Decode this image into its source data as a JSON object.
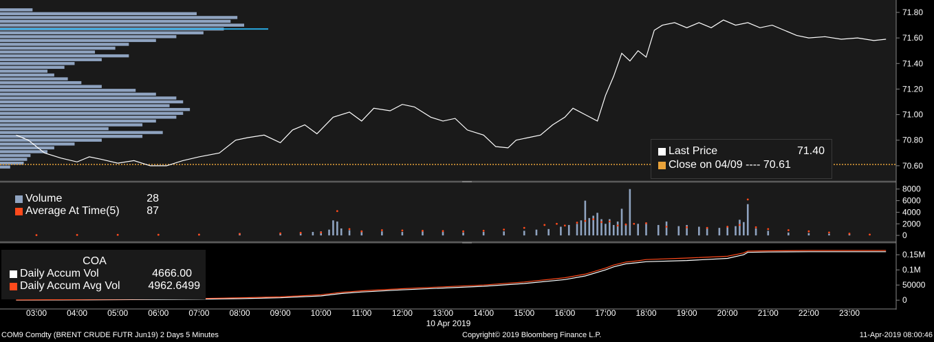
{
  "colors": {
    "background": "#000000",
    "panel": "#1a1a1a",
    "price_line": "#ffffff",
    "profile_bar": "#8fa3c0",
    "profile_poc": "#29a8e0",
    "close_line": "#e8a23a",
    "volume_bar": "#8fa3c0",
    "avg_dot": "#ff4a1c",
    "accum_vol": "#ffffff",
    "accum_avg": "#ff4a1c",
    "separator": "#5a5a5a"
  },
  "legend_price": {
    "last_price_label": "Last Price",
    "last_price_value": "71.40",
    "close_label": "Close on 04/09 ---- 70.61"
  },
  "legend_volume": {
    "volume_label": "Volume",
    "volume_value": "28",
    "avg_label": "Average At Time(5)",
    "avg_value": "87"
  },
  "legend_accum": {
    "title": "COA",
    "daily_accum_label": "Daily Accum Vol",
    "daily_accum_value": "4666.00",
    "daily_avg_label": "Daily Accum Avg Vol",
    "daily_avg_value": "4962.6499"
  },
  "footer": {
    "security": "COM9 Comdty  (BRENT CRUDE FUTR  Jun19) 2 Days 5 Minutes",
    "copyright": "Copyright© 2019 Bloomberg Finance L.P.",
    "timestamp": "11-Apr-2019 08:00:46"
  },
  "date_label": "10 Apr 2019",
  "chart_data": {
    "type": "line",
    "x_ticks": [
      "03:00",
      "04:00",
      "05:00",
      "06:00",
      "07:00",
      "08:00",
      "09:00",
      "10:00",
      "11:00",
      "12:00",
      "13:00",
      "14:00",
      "15:00",
      "16:00",
      "17:00",
      "18:00",
      "19:00",
      "20:00",
      "21:00",
      "22:00",
      "23:00"
    ],
    "price": {
      "ylim": [
        70.54,
        71.87
      ],
      "y_ticks": [
        "71.80",
        "71.60",
        "71.40",
        "71.20",
        "71.00",
        "70.80",
        "70.60"
      ],
      "close_value": 70.61,
      "series": [
        {
          "name": "Last Price",
          "x": [
            2.5,
            2.8,
            3.2,
            3.6,
            4.0,
            4.3,
            4.6,
            5.0,
            5.4,
            5.8,
            6.2,
            6.6,
            7.0,
            7.5,
            7.9,
            8.2,
            8.6,
            9.0,
            9.3,
            9.6,
            9.9,
            10.3,
            10.7,
            11.0,
            11.3,
            11.7,
            12.0,
            12.3,
            12.7,
            13.0,
            13.3,
            13.6,
            14.0,
            14.3,
            14.6,
            14.8,
            15.1,
            15.4,
            15.7,
            16.0,
            16.2,
            16.5,
            16.8,
            17.0,
            17.2,
            17.4,
            17.6,
            17.8,
            18.0,
            18.2,
            18.4,
            18.7,
            19.0,
            19.3,
            19.6,
            19.9,
            20.2,
            20.5,
            20.8,
            21.1,
            21.4,
            21.7,
            22.0,
            22.4,
            22.8,
            23.2,
            23.6,
            23.9
          ],
          "y": [
            70.84,
            70.8,
            70.7,
            70.66,
            70.63,
            70.67,
            70.65,
            70.62,
            70.64,
            70.6,
            70.6,
            70.64,
            70.67,
            70.7,
            70.8,
            70.82,
            70.84,
            70.78,
            70.88,
            70.92,
            70.85,
            70.98,
            71.02,
            70.95,
            71.05,
            71.03,
            71.08,
            71.06,
            70.98,
            70.95,
            70.97,
            70.88,
            70.84,
            70.75,
            70.74,
            70.8,
            70.82,
            70.84,
            70.92,
            70.98,
            71.05,
            71.0,
            70.95,
            71.15,
            71.3,
            71.48,
            71.42,
            71.5,
            71.45,
            71.66,
            71.7,
            71.72,
            71.68,
            71.72,
            71.68,
            71.74,
            71.7,
            71.72,
            71.68,
            71.7,
            71.66,
            71.62,
            71.6,
            71.61,
            71.59,
            71.6,
            71.58,
            71.59
          ]
        }
      ]
    },
    "volume_profile": {
      "price_levels": [
        71.82,
        71.79,
        71.76,
        71.73,
        71.7,
        71.67,
        71.64,
        71.61,
        71.58,
        71.55,
        71.52,
        71.49,
        71.46,
        71.43,
        71.4,
        71.37,
        71.34,
        71.31,
        71.28,
        71.25,
        71.22,
        71.19,
        71.16,
        71.13,
        71.1,
        71.07,
        71.04,
        71.01,
        70.98,
        70.95,
        70.92,
        70.89,
        70.86,
        70.83,
        70.8,
        70.77,
        70.74,
        70.71,
        70.68,
        70.65,
        70.62,
        70.59
      ],
      "values": [
        48,
        290,
        350,
        340,
        360,
        330,
        300,
        260,
        230,
        190,
        170,
        140,
        190,
        150,
        110,
        95,
        70,
        80,
        100,
        120,
        150,
        200,
        230,
        260,
        270,
        250,
        280,
        270,
        260,
        230,
        210,
        160,
        240,
        210,
        150,
        110,
        80,
        70,
        45,
        40,
        35,
        15
      ],
      "poc": 71.67
    },
    "volume": {
      "ylim": [
        -700,
        8800
      ],
      "y_ticks": [
        "8000",
        "6000",
        "4000",
        "2000",
        "0"
      ],
      "series": [
        {
          "name": "Volume",
          "x": [
            3.0,
            4.0,
            5.0,
            6.0,
            7.0,
            8.0,
            9.0,
            9.5,
            9.8,
            10.0,
            10.2,
            10.3,
            10.4,
            10.5,
            10.7,
            11.0,
            11.5,
            12.0,
            12.5,
            13.0,
            13.5,
            14.0,
            14.5,
            15.0,
            15.3,
            15.6,
            15.9,
            16.1,
            16.3,
            16.4,
            16.5,
            16.6,
            16.7,
            16.8,
            16.9,
            17.0,
            17.1,
            17.2,
            17.3,
            17.4,
            17.5,
            17.6,
            17.8,
            18.0,
            18.3,
            18.5,
            18.8,
            19.0,
            19.3,
            19.5,
            19.8,
            20.0,
            20.2,
            20.3,
            20.4,
            20.5,
            20.7,
            21.0,
            21.5,
            22.0,
            22.5,
            23.0
          ],
          "values": [
            60,
            90,
            120,
            150,
            200,
            400,
            300,
            500,
            600,
            700,
            1000,
            2600,
            2400,
            1200,
            900,
            800,
            700,
            600,
            700,
            600,
            500,
            600,
            700,
            800,
            1000,
            1100,
            1500,
            1800,
            2000,
            2600,
            6000,
            3000,
            3400,
            3900,
            2800,
            2000,
            2800,
            1800,
            2400,
            4600,
            1900,
            8000,
            2000,
            2200,
            1800,
            2400,
            1600,
            1800,
            1500,
            1400,
            1300,
            1500,
            1600,
            2700,
            2300,
            5400,
            1200,
            800,
            500,
            400,
            300,
            250
          ]
        },
        {
          "name": "Average At Time(5)",
          "x": [
            3.0,
            4.0,
            5.0,
            6.0,
            7.0,
            8.0,
            9.0,
            9.5,
            10.0,
            10.4,
            10.7,
            11.0,
            11.5,
            12.0,
            12.5,
            13.0,
            13.5,
            14.0,
            14.5,
            15.0,
            15.5,
            15.8,
            16.0,
            16.3,
            16.5,
            16.7,
            16.9,
            17.1,
            17.3,
            17.5,
            17.7,
            18.0,
            18.5,
            19.0,
            19.5,
            20.0,
            20.3,
            20.5,
            20.7,
            21.0,
            21.5,
            22.0,
            22.5,
            23.0,
            23.5
          ],
          "values": [
            50,
            80,
            100,
            120,
            140,
            250,
            350,
            450,
            500,
            4200,
            1100,
            700,
            900,
            850,
            800,
            750,
            700,
            800,
            1000,
            1300,
            1800,
            2000,
            1700,
            2200,
            2500,
            2800,
            2300,
            2400,
            1700,
            1900,
            2000,
            2100,
            1500,
            1400,
            1300,
            1500,
            1800,
            6200,
            1400,
            1100,
            900,
            700,
            500,
            300,
            150
          ]
        }
      ]
    },
    "accumulation": {
      "ylim": [
        -20000,
        180000
      ],
      "y_ticks": [
        "0.15M",
        "0.1M",
        "50000",
        "0"
      ],
      "series": [
        {
          "name": "Daily Accum Vol",
          "x": [
            2.5,
            4.0,
            5.0,
            6.0,
            7.0,
            8.0,
            9.0,
            10.0,
            10.5,
            11.0,
            12.0,
            13.0,
            14.0,
            15.0,
            16.0,
            16.5,
            17.0,
            17.2,
            17.5,
            17.8,
            18.0,
            19.0,
            20.0,
            20.4,
            20.5,
            21.0,
            22.0,
            23.0,
            23.9
          ],
          "y": [
            0,
            800,
            1600,
            2400,
            3200,
            5000,
            8000,
            14000,
            22000,
            27000,
            34000,
            40000,
            46000,
            55000,
            68000,
            80000,
            100000,
            110000,
            120000,
            124000,
            127000,
            131000,
            138000,
            150000,
            158000,
            159000,
            160000,
            160000,
            160000
          ]
        },
        {
          "name": "Daily Accum Avg Vol",
          "x": [
            2.5,
            4.0,
            5.0,
            6.0,
            7.0,
            8.0,
            9.0,
            10.0,
            10.5,
            11.0,
            12.0,
            13.0,
            14.0,
            15.0,
            16.0,
            16.5,
            17.0,
            17.2,
            17.5,
            17.8,
            18.0,
            19.0,
            20.0,
            20.4,
            20.5,
            21.0,
            22.0,
            23.0,
            23.9
          ],
          "y": [
            1000,
            2000,
            3000,
            4000,
            5500,
            8000,
            11000,
            18000,
            26000,
            31000,
            38000,
            44000,
            50000,
            60000,
            74000,
            86000,
            106000,
            116000,
            126000,
            130000,
            134000,
            139000,
            145000,
            156000,
            162000,
            163000,
            164000,
            164000,
            164000
          ]
        }
      ]
    }
  }
}
